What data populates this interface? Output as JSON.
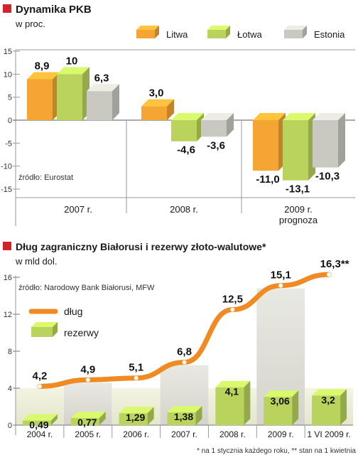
{
  "chart_data": [
    {
      "type": "bar",
      "title": "Dynamika PKB",
      "subtitle": "w proc.",
      "source": "źródło: Eurostat",
      "categories": [
        "2007 r.",
        "2008 r.",
        "2009 r."
      ],
      "category_note": "prognoza",
      "ylim": [
        -15,
        15
      ],
      "yticks": [
        "15",
        "10",
        "5",
        "0",
        "-5",
        "-10",
        "-15"
      ],
      "legend_position": "top-right",
      "series": [
        {
          "name": "Litwa",
          "color": "#f4a533",
          "values": [
            8.9,
            3.0,
            -11.0
          ],
          "labels": [
            "8,9",
            "3,0",
            "-11,0"
          ]
        },
        {
          "name": "Łotwa",
          "color": "#b9d35c",
          "values": [
            10,
            -4.6,
            -13.1
          ],
          "labels": [
            "10",
            "-4,6",
            "-13,1"
          ]
        },
        {
          "name": "Estonia",
          "color": "#c9c9c2",
          "values": [
            6.3,
            -3.6,
            -10.3
          ],
          "labels": [
            "6,3",
            "-3,6",
            "-10,3"
          ]
        }
      ]
    },
    {
      "type": "bar+line",
      "title": "Dług zagraniczny Białorusi i rezerwy złoto-walutowe*",
      "subtitle": "w mld dol.",
      "source": "źródło: Narodowy Bank Białorusi, MFW",
      "categories": [
        "2004 r.",
        "2005 r.",
        "2006 r.",
        "2007 r.",
        "2008 r.",
        "2009 r.",
        "1 VI 2009 r."
      ],
      "ylim": [
        0,
        16
      ],
      "yticks": [
        "16",
        "12",
        "8",
        "4",
        "0"
      ],
      "legend_position": "top-left",
      "line": {
        "name": "dług",
        "color": "#f08a22",
        "values": [
          4.2,
          4.9,
          5.1,
          6.8,
          12.5,
          15.1,
          16.3
        ],
        "labels": [
          "4,2",
          "4,9",
          "5,1",
          "6,8",
          "12,5",
          "15,1",
          "16,3**"
        ]
      },
      "bars": {
        "name": "rezerwy",
        "color": "#b9d35c",
        "values": [
          0.49,
          0.77,
          1.29,
          1.38,
          4.1,
          3.06,
          3.2
        ],
        "labels": [
          "0,49",
          "0,77",
          "1,29",
          "1,38",
          "4,1",
          "3,06",
          "3,2"
        ]
      },
      "footnote": "* na 1 stycznia każdego roku, ** stan na 1 kwietnia"
    }
  ]
}
